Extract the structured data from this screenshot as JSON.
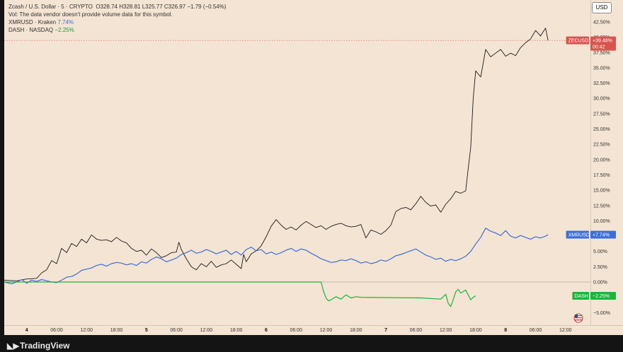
{
  "legend": {
    "main": {
      "symbol": "Zcash / U.S. Dollar",
      "interval": "5",
      "exchange": "CRYPTO",
      "open": "O328.74",
      "high": "H328.81",
      "low": "L325.77",
      "close": "C326.97",
      "change": "−1.79 (−0.54%)"
    },
    "vol_note": "Vol: The data vendor doesn't provide volume data for this symbol.",
    "series2": {
      "label": "XMRUSD · Kraken",
      "pct": "7.74%"
    },
    "series3": {
      "label": "DASH · NASDAQ",
      "pct": "−2.25%"
    }
  },
  "currency_button": "USD",
  "footer": {
    "brand": "TradingView"
  },
  "colors": {
    "zec": "#1a1a1a",
    "xmr": "#3b6fd8",
    "dash": "#1cb43c",
    "zec_tag": "#d9534f"
  },
  "chart_data": {
    "type": "line",
    "y_unit": "%",
    "ylim": [
      -6,
      46
    ],
    "y_ticks": [
      42.5,
      40,
      37.5,
      35,
      32.5,
      30,
      27.5,
      25,
      22.5,
      20,
      17.5,
      15,
      12.5,
      10,
      7.5,
      5,
      2.5,
      0,
      -2.5,
      -5
    ],
    "y_tick_labels": [
      "42.50%",
      "40.00%",
      "37.50%",
      "35.00%",
      "32.50%",
      "30.00%",
      "27.50%",
      "25.00%",
      "22.50%",
      "20.00%",
      "17.50%",
      "15.00%",
      "12.50%",
      "10.00%",
      "7.50%",
      "5.00%",
      "2.50%",
      "0.00%",
      "−2.50%",
      "−5.00%"
    ],
    "x_ticks": [
      {
        "label": "4",
        "h": 3,
        "day": true
      },
      {
        "label": "06:00",
        "h": 9
      },
      {
        "label": "12:00",
        "h": 15
      },
      {
        "label": "18:00",
        "h": 21
      },
      {
        "label": "5",
        "h": 27,
        "day": true
      },
      {
        "label": "06:00",
        "h": 33
      },
      {
        "label": "12:00",
        "h": 39
      },
      {
        "label": "18:00",
        "h": 45
      },
      {
        "label": "6",
        "h": 51,
        "day": true
      },
      {
        "label": "06:00",
        "h": 57
      },
      {
        "label": "12:00",
        "h": 63
      },
      {
        "label": "18:00",
        "h": 69
      },
      {
        "label": "7",
        "h": 75,
        "day": true
      },
      {
        "label": "06:00",
        "h": 81
      },
      {
        "label": "12:00",
        "h": 87
      },
      {
        "label": "18:00",
        "h": 93
      },
      {
        "label": "8",
        "h": 99,
        "day": true
      },
      {
        "label": "06:00",
        "h": 105
      },
      {
        "label": "12:00",
        "h": 111
      }
    ],
    "xlim_hours": [
      -1.5,
      116
    ],
    "series": [
      {
        "name": "ZECUSD",
        "color": "#1a1a1a",
        "last_label": "+39.48%",
        "countdown": "00:42",
        "points": [
          [
            -1.5,
            0.3
          ],
          [
            1,
            0.2
          ],
          [
            3,
            0.5
          ],
          [
            5,
            0.6
          ],
          [
            6,
            1.5
          ],
          [
            7,
            2.0
          ],
          [
            8,
            3.5
          ],
          [
            9,
            3.0
          ],
          [
            10,
            5.5
          ],
          [
            11,
            4.8
          ],
          [
            12,
            6.3
          ],
          [
            13,
            5.8
          ],
          [
            14,
            7.0
          ],
          [
            15,
            6.4
          ],
          [
            16,
            7.7
          ],
          [
            17,
            7.0
          ],
          [
            18,
            6.8
          ],
          [
            19,
            6.9
          ],
          [
            20,
            6.6
          ],
          [
            21,
            7.3
          ],
          [
            22,
            6.7
          ],
          [
            23,
            6.4
          ],
          [
            24,
            5.5
          ],
          [
            25,
            5.0
          ],
          [
            26,
            5.2
          ],
          [
            27,
            4.4
          ],
          [
            28,
            5.4
          ],
          [
            29,
            4.8
          ],
          [
            30,
            4.0
          ],
          [
            31,
            4.3
          ],
          [
            32,
            4.8
          ],
          [
            33,
            4.9
          ],
          [
            33.5,
            6.5
          ],
          [
            34,
            5.3
          ],
          [
            35,
            3.8
          ],
          [
            36,
            2.5
          ],
          [
            37,
            2.0
          ],
          [
            38,
            3.0
          ],
          [
            39,
            2.5
          ],
          [
            40,
            3.4
          ],
          [
            41,
            2.4
          ],
          [
            42,
            2.8
          ],
          [
            43,
            3.0
          ],
          [
            44,
            3.6
          ],
          [
            45,
            2.9
          ],
          [
            46,
            2.2
          ],
          [
            46.5,
            4.5
          ],
          [
            47,
            3.3
          ],
          [
            48,
            4.6
          ],
          [
            49,
            5.1
          ],
          [
            50,
            5.9
          ],
          [
            51,
            7.4
          ],
          [
            52,
            9.1
          ],
          [
            53,
            10.2
          ],
          [
            54,
            9.3
          ],
          [
            55,
            8.6
          ],
          [
            56,
            9.0
          ],
          [
            57,
            8.5
          ],
          [
            58,
            9.3
          ],
          [
            59,
            9.9
          ],
          [
            60,
            9.4
          ],
          [
            61,
            8.9
          ],
          [
            62,
            9.2
          ],
          [
            63,
            8.6
          ],
          [
            64,
            9.1
          ],
          [
            65,
            9.4
          ],
          [
            66,
            9.6
          ],
          [
            67,
            9.2
          ],
          [
            68,
            9.0
          ],
          [
            69,
            9.1
          ],
          [
            70,
            9.4
          ],
          [
            71,
            7.2
          ],
          [
            72,
            8.5
          ],
          [
            73,
            8.2
          ],
          [
            74,
            7.8
          ],
          [
            75,
            8.4
          ],
          [
            76,
            9.3
          ],
          [
            77,
            11.5
          ],
          [
            78,
            12.0
          ],
          [
            79,
            12.2
          ],
          [
            80,
            11.8
          ],
          [
            81,
            12.8
          ],
          [
            82,
            14.0
          ],
          [
            83,
            13.0
          ],
          [
            84,
            12.4
          ],
          [
            85,
            12.6
          ],
          [
            86,
            11.4
          ],
          [
            87,
            12.7
          ],
          [
            88,
            13.6
          ],
          [
            89,
            14.8
          ],
          [
            90,
            14.5
          ],
          [
            91,
            14.9
          ],
          [
            91.5,
            18.6
          ],
          [
            92,
            22.0
          ],
          [
            92.5,
            30.0
          ],
          [
            93,
            34.5
          ],
          [
            94,
            33.5
          ],
          [
            95,
            38.0
          ],
          [
            96,
            36.8
          ],
          [
            97,
            37.4
          ],
          [
            98,
            38.0
          ],
          [
            99,
            36.9
          ],
          [
            100,
            37.4
          ],
          [
            101,
            37.0
          ],
          [
            102,
            38.3
          ],
          [
            103,
            39.1
          ],
          [
            104,
            39.7
          ],
          [
            105,
            41.1
          ],
          [
            106,
            40.2
          ],
          [
            107,
            41.5
          ],
          [
            107.5,
            39.48
          ]
        ]
      },
      {
        "name": "XMRUSD",
        "color": "#3b6fd8",
        "last_label": "+7.74%",
        "points": [
          [
            -1.5,
            0.0
          ],
          [
            0,
            -0.3
          ],
          [
            1,
            0.0
          ],
          [
            2,
            0.4
          ],
          [
            3,
            -0.2
          ],
          [
            4,
            0.3
          ],
          [
            5,
            0.1
          ],
          [
            6,
            0.4
          ],
          [
            7,
            0.2
          ],
          [
            8,
            0.0
          ],
          [
            9,
            -0.1
          ],
          [
            10,
            0.3
          ],
          [
            11,
            0.8
          ],
          [
            12,
            0.9
          ],
          [
            13,
            1.3
          ],
          [
            14,
            1.9
          ],
          [
            15,
            2.1
          ],
          [
            16,
            2.3
          ],
          [
            17,
            2.7
          ],
          [
            18,
            2.9
          ],
          [
            19,
            2.6
          ],
          [
            20,
            3.0
          ],
          [
            21,
            3.2
          ],
          [
            22,
            3.1
          ],
          [
            23,
            2.8
          ],
          [
            24,
            3.0
          ],
          [
            25,
            2.7
          ],
          [
            26,
            3.3
          ],
          [
            27,
            3.1
          ],
          [
            28,
            3.7
          ],
          [
            29,
            4.1
          ],
          [
            30,
            3.8
          ],
          [
            31,
            3.3
          ],
          [
            32,
            3.6
          ],
          [
            33,
            3.9
          ],
          [
            34,
            4.5
          ],
          [
            35,
            4.8
          ],
          [
            36,
            5.2
          ],
          [
            37,
            4.7
          ],
          [
            38,
            4.9
          ],
          [
            39,
            5.3
          ],
          [
            40,
            5.0
          ],
          [
            41,
            4.6
          ],
          [
            42,
            4.9
          ],
          [
            43,
            5.2
          ],
          [
            44,
            4.5
          ],
          [
            45,
            5.0
          ],
          [
            46,
            4.4
          ],
          [
            47,
            5.3
          ],
          [
            48,
            5.7
          ],
          [
            49,
            5.1
          ],
          [
            50,
            5.3
          ],
          [
            51,
            4.6
          ],
          [
            52,
            4.9
          ],
          [
            53,
            4.5
          ],
          [
            54,
            4.8
          ],
          [
            55,
            5.2
          ],
          [
            56,
            5.5
          ],
          [
            57,
            5.0
          ],
          [
            58,
            5.4
          ],
          [
            59,
            5.2
          ],
          [
            60,
            4.7
          ],
          [
            61,
            4.3
          ],
          [
            62,
            3.8
          ],
          [
            63,
            3.5
          ],
          [
            64,
            3.2
          ],
          [
            65,
            3.3
          ],
          [
            66,
            3.6
          ],
          [
            67,
            3.5
          ],
          [
            68,
            3.8
          ],
          [
            69,
            3.5
          ],
          [
            70,
            3.1
          ],
          [
            71,
            3.3
          ],
          [
            72,
            3.0
          ],
          [
            73,
            3.2
          ],
          [
            74,
            3.6
          ],
          [
            75,
            3.4
          ],
          [
            76,
            3.8
          ],
          [
            77,
            4.3
          ],
          [
            78,
            4.5
          ],
          [
            79,
            4.8
          ],
          [
            80,
            5.1
          ],
          [
            81,
            5.4
          ],
          [
            82,
            4.9
          ],
          [
            83,
            4.4
          ],
          [
            84,
            4.1
          ],
          [
            85,
            3.7
          ],
          [
            86,
            3.9
          ],
          [
            87,
            3.4
          ],
          [
            88,
            3.7
          ],
          [
            89,
            3.5
          ],
          [
            90,
            3.8
          ],
          [
            91,
            4.2
          ],
          [
            92,
            5.0
          ],
          [
            93,
            6.2
          ],
          [
            94,
            7.3
          ],
          [
            95,
            8.8
          ],
          [
            96,
            8.3
          ],
          [
            97,
            8.0
          ],
          [
            98,
            7.6
          ],
          [
            99,
            8.4
          ],
          [
            100,
            7.5
          ],
          [
            101,
            7.2
          ],
          [
            102,
            7.6
          ],
          [
            103,
            7.3
          ],
          [
            104,
            7.0
          ],
          [
            105,
            7.4
          ],
          [
            106,
            7.2
          ],
          [
            107,
            7.5
          ],
          [
            107.5,
            7.74
          ]
        ]
      },
      {
        "name": "DASH",
        "color": "#1cb43c",
        "last_label": "−2.25%",
        "points": [
          [
            -1.5,
            0.0
          ],
          [
            62,
            0.0
          ],
          [
            62.5,
            -1.5
          ],
          [
            63,
            -2.6
          ],
          [
            63.5,
            -3.1
          ],
          [
            64,
            -2.9
          ],
          [
            65,
            -2.4
          ],
          [
            66,
            -2.8
          ],
          [
            67,
            -2.1
          ],
          [
            68,
            -2.6
          ],
          [
            69,
            -2.4
          ],
          [
            70,
            -2.5
          ],
          [
            82,
            -2.6
          ],
          [
            86,
            -2.8
          ],
          [
            87,
            -2.0
          ],
          [
            87.5,
            -3.5
          ],
          [
            88,
            -4.0
          ],
          [
            88.5,
            -2.9
          ],
          [
            89,
            -1.6
          ],
          [
            89.5,
            -1.2
          ],
          [
            90,
            -1.8
          ],
          [
            91,
            -1.3
          ],
          [
            92,
            -2.9
          ],
          [
            92.5,
            -2.5
          ],
          [
            93,
            -2.25
          ]
        ]
      }
    ],
    "grid": false,
    "legend_position": "top-left"
  }
}
